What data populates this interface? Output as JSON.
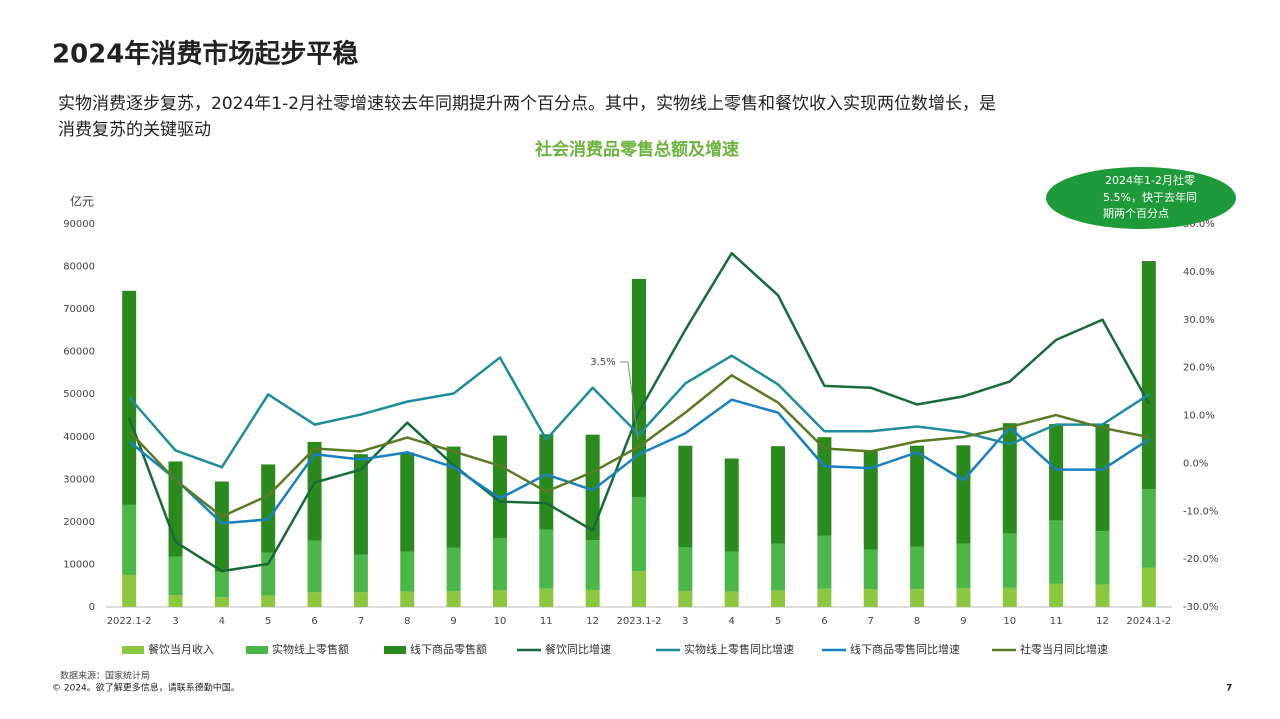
{
  "slide": {
    "title": "2024年消费市场起步平稳",
    "subtitle": [
      "实物消费逐步复苏，2024年1-2月社零增速较去年同期提升两个百分点。其中，实物线上零售和餐饮收入实现两位数增长，是",
      "消费复苏的关键驱动"
    ],
    "source": "数据来源：国家统计局",
    "copyright": "© 2024。欲了解更多信息，请联系德勤中国。",
    "page_number": "7"
  },
  "chart_data": {
    "type": "bar",
    "stacked": true,
    "title": "社会消费品零售总额及增速",
    "y_label": "亿元",
    "annotation": "3.5%",
    "callout": [
      "2024年1-2月社零",
      "5.5%，快于去年同",
      "期两个百分点"
    ],
    "categories": [
      "2022.1-2",
      "3",
      "4",
      "5",
      "6",
      "7",
      "8",
      "9",
      "10",
      "11",
      "12",
      "2023.1-2",
      "3",
      "4",
      "5",
      "6",
      "7",
      "8",
      "9",
      "10",
      "11",
      "12",
      "2024.1-2"
    ],
    "ylim": [
      0,
      90000
    ],
    "yticks": [
      0,
      10000,
      20000,
      30000,
      40000,
      50000,
      60000,
      70000,
      80000,
      90000
    ],
    "y2lim": [
      -30,
      50
    ],
    "y2ticks": [
      {
        "value": -30,
        "label": "-30.0%"
      },
      {
        "value": -20,
        "label": "-20.0%"
      },
      {
        "value": -10,
        "label": "-10.0%"
      },
      {
        "value": 0,
        "label": "0.0%"
      },
      {
        "value": 10,
        "label": "10.0%"
      },
      {
        "value": 20,
        "label": "20.0%"
      },
      {
        "value": 30,
        "label": "30.0%"
      },
      {
        "value": 40,
        "label": "40.0%"
      },
      {
        "value": 50,
        "label": "50.0%"
      }
    ],
    "series": [
      {
        "name": "餐饮当月收入",
        "type": "bar",
        "color": "#8dc63f",
        "values": [
          7500,
          2800,
          2300,
          2700,
          3500,
          3500,
          3600,
          3700,
          4000,
          4300,
          4000,
          8400,
          3700,
          3600,
          3900,
          4300,
          4200,
          4200,
          4400,
          4500,
          5500,
          5300,
          9200
        ]
      },
      {
        "name": "实物线上零售额",
        "type": "bar",
        "color": "#4cb648",
        "values": [
          16500,
          9000,
          6000,
          10100,
          12100,
          8800,
          9400,
          10200,
          12200,
          13900,
          11700,
          17400,
          10400,
          9400,
          11000,
          12500,
          9300,
          10000,
          10500,
          12800,
          14800,
          12500,
          18500
        ]
      },
      {
        "name": "线下商品零售额",
        "type": "bar",
        "color": "#2b8a1e",
        "values": [
          50300,
          22400,
          21200,
          20700,
          23200,
          23600,
          23300,
          23800,
          24100,
          22400,
          24800,
          51300,
          23800,
          21900,
          22900,
          23100,
          23300,
          23700,
          23100,
          25900,
          22700,
          25200,
          53600
        ]
      },
      {
        "name": "餐饮同比增速",
        "type": "line",
        "axis": "y2",
        "color": "#176b3a",
        "values": [
          9.6,
          -16.4,
          -22.5,
          -21,
          -4,
          -1.3,
          8.5,
          -0.4,
          -8,
          -8.3,
          -14,
          10.8,
          27.9,
          43.9,
          35.1,
          16.2,
          15.8,
          12.3,
          14,
          17.1,
          25.8,
          30,
          12.5
        ]
      },
      {
        "name": "实物线上零售同比增速",
        "type": "line",
        "axis": "y2",
        "color": "#1f8c9a",
        "values": [
          13.8,
          2.7,
          -0.8,
          14.4,
          8.1,
          10.2,
          12.9,
          14.6,
          22.1,
          5,
          15.8,
          6,
          16.7,
          22.5,
          16.5,
          6.7,
          6.7,
          7.7,
          6.5,
          4,
          8.1,
          8.1,
          14.4
        ]
      },
      {
        "name": "线下商品零售同比增速",
        "type": "line",
        "axis": "y2",
        "color": "#1a80c2",
        "values": [
          4.6,
          -3.3,
          -12.5,
          -11.7,
          1.9,
          0.8,
          2.3,
          -0.8,
          -7.3,
          -2.3,
          -5.6,
          1.9,
          6.3,
          13.3,
          10.6,
          -0.6,
          -1,
          2.3,
          -3.5,
          7.5,
          -1.3,
          -1.3,
          5
        ]
      },
      {
        "name": "社零当月同比增速",
        "type": "line",
        "axis": "y2",
        "color": "#5b7a26",
        "values": [
          6.7,
          -3.5,
          -11.1,
          -6.7,
          3.1,
          2.5,
          5.4,
          2.5,
          -0.5,
          -5.9,
          -1.8,
          3.5,
          10.6,
          18.4,
          12.7,
          3.1,
          2.5,
          4.6,
          5.5,
          7.6,
          10.1,
          7.4,
          5.5
        ]
      }
    ]
  }
}
